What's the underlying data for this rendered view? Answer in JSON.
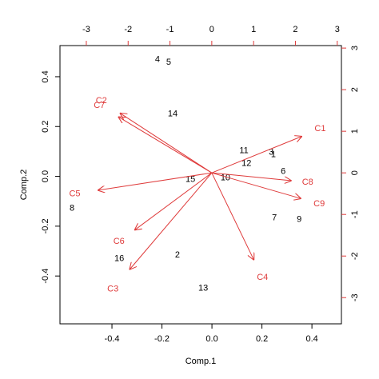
{
  "chart_data": {
    "type": "biplot",
    "xlabel": "Comp.1",
    "ylabel": "Comp.2",
    "xlim": [
      -0.608,
      0.518
    ],
    "ylim": [
      -0.592,
      0.525
    ],
    "xticks": [
      -0.4,
      -0.2,
      {
        "value": 0,
        "label": "0.0"
      },
      0.2,
      0.4
    ],
    "yticks": [
      -0.4,
      -0.2,
      {
        "value": 0,
        "label": "0.0"
      },
      0.2,
      0.4
    ],
    "x2lim": [
      -3.63,
      3.1
    ],
    "x2ticks": [
      -3,
      -2,
      -1,
      0,
      1,
      2,
      3
    ],
    "y2lim": [
      -3.63,
      3.06
    ],
    "y2ticks": [
      -3,
      -2,
      -1,
      0,
      1,
      2,
      3
    ],
    "points": {
      "color": "#000000",
      "labels": [
        "4",
        "5",
        "14",
        "11",
        "3",
        "1",
        "12",
        "6",
        "10",
        "15",
        "8",
        "7",
        "9",
        "2",
        "16",
        "13"
      ],
      "x": [
        -0.218,
        -0.173,
        -0.157,
        0.128,
        0.237,
        0.246,
        0.138,
        0.285,
        0.054,
        -0.086,
        -0.56,
        0.25,
        0.349,
        -0.138,
        -0.371,
        -0.035
      ],
      "y": [
        0.468,
        0.458,
        0.25,
        0.103,
        0.096,
        0.087,
        0.051,
        0.019,
        -0.006,
        -0.013,
        -0.128,
        -0.167,
        -0.173,
        -0.317,
        -0.33,
        -0.449
      ]
    },
    "loadings": {
      "color": "#df3b3b",
      "labels": [
        "C1",
        "C2",
        "C7",
        "C8",
        "C9",
        "C5",
        "C6",
        "C3",
        "C4"
      ],
      "x": [
        2.16,
        -2.2,
        -2.24,
        1.91,
        2.14,
        -2.73,
        -1.85,
        -1.97,
        1.01
      ],
      "y": [
        0.88,
        1.44,
        1.35,
        -0.19,
        -0.62,
        -0.42,
        -1.38,
        -2.33,
        -2.1
      ]
    }
  }
}
